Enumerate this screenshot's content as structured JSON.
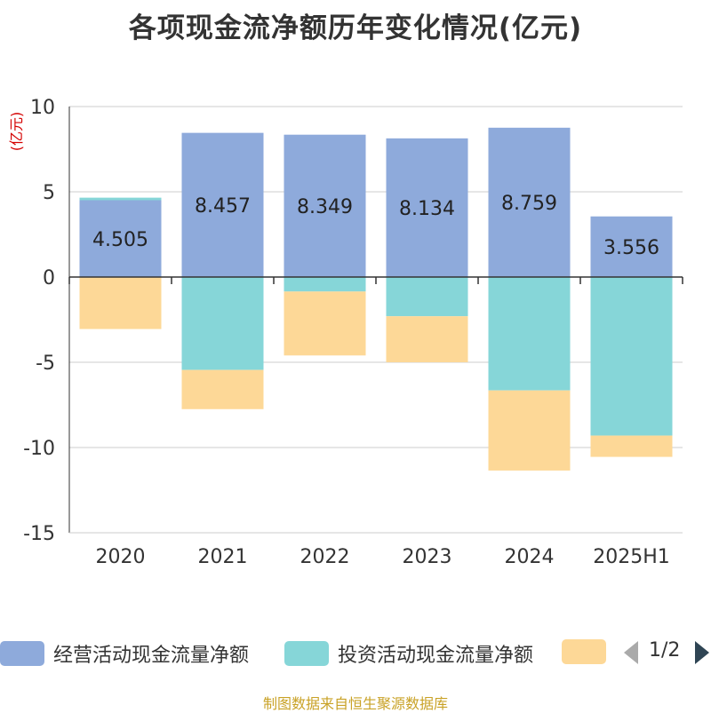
{
  "title": "各项现金流净额历年变化情况(亿元)",
  "source_text": "制图数据来自恒生聚源数据库",
  "pager": {
    "text": "1/2"
  },
  "chart_data": {
    "type": "bar",
    "stacked": true,
    "title": "各项现金流净额历年变化情况(亿元)",
    "ylabel": "(亿元)",
    "xlabel": "",
    "ylim": [
      -15,
      10
    ],
    "yticks": [
      10,
      5,
      0,
      -5,
      -10,
      -15
    ],
    "ytick_labels": [
      "10",
      "5",
      "0",
      "-5",
      "-10",
      "-15"
    ],
    "grid": true,
    "legend_position": "bottom",
    "categories": [
      "2020",
      "2021",
      "2022",
      "2023",
      "2024",
      "2025H1"
    ],
    "series": [
      {
        "name": "经营活动现金流量净额",
        "color": "#8eaadb",
        "values": [
          4.505,
          8.457,
          8.349,
          8.134,
          8.759,
          3.556
        ],
        "data_labels": [
          "4.505",
          "8.457",
          "8.349",
          "8.134",
          "8.759",
          "3.556"
        ]
      },
      {
        "name": "投资活动现金流量净额",
        "color": "#86d6d8",
        "values": [
          0.15,
          -5.45,
          -0.85,
          -2.3,
          -6.65,
          -9.3
        ],
        "data_labels": []
      },
      {
        "name": "",
        "color": "#fdd897",
        "values": [
          -3.05,
          -2.3,
          -3.75,
          -2.7,
          -4.7,
          -1.25
        ],
        "data_labels": []
      }
    ]
  }
}
